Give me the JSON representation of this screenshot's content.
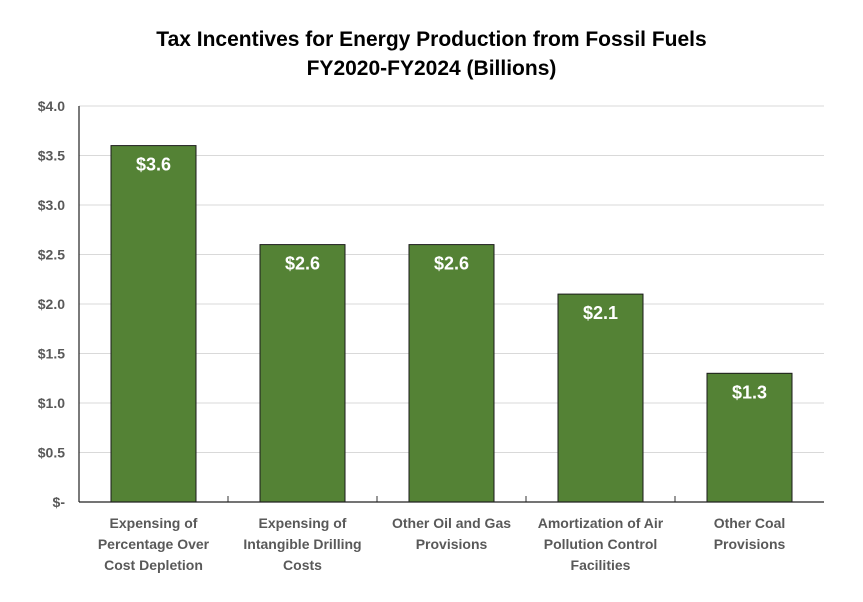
{
  "chart_data": {
    "type": "bar",
    "title": "Tax Incentives for Energy Production from Fossil Fuels",
    "subtitle": "FY2020-FY2024 (Billions)",
    "xlabel": "",
    "ylabel": "",
    "ylim": [
      0,
      4.0
    ],
    "grid": true,
    "yticks": [
      0,
      0.5,
      1.0,
      1.5,
      2.0,
      2.5,
      3.0,
      3.5,
      4.0
    ],
    "ytick_labels": [
      "$-",
      "$0.5",
      "$1.0",
      "$1.5",
      "$2.0",
      "$2.5",
      "$3.0",
      "$3.5",
      "$4.0"
    ],
    "categories": [
      [
        "Expensing of",
        "Percentage Over",
        "Cost Depletion"
      ],
      [
        "Expensing of",
        "Intangible Drilling",
        "Costs"
      ],
      [
        "Other Oil and Gas",
        "Provisions"
      ],
      [
        "Amortization of Air",
        "Pollution Control",
        "Facilities"
      ],
      [
        "Other Coal",
        "Provisions"
      ]
    ],
    "values": [
      3.6,
      2.6,
      2.6,
      2.1,
      1.3
    ],
    "data_labels": [
      "$3.6",
      "$2.6",
      "$2.6",
      "$2.1",
      "$1.3"
    ],
    "bar_color": "#548235",
    "legend": "none"
  }
}
